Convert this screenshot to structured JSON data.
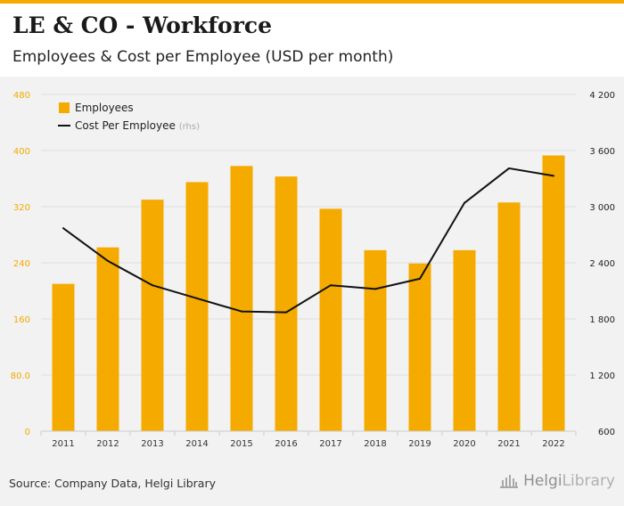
{
  "header": {
    "title": "LE & CO - Workforce",
    "subtitle": "Employees & Cost per Employee (USD per month)"
  },
  "footer": {
    "source": "Source: Company Data, Helgi Library",
    "brand_part1": "Helgi",
    "brand_part2": "Library"
  },
  "colors": {
    "bar": "#f5aa00",
    "line": "#111111",
    "left_axis": "#f5aa00",
    "right_axis": "#222222"
  },
  "chart_data": {
    "type": "bar",
    "categories": [
      "2011",
      "2012",
      "2013",
      "2014",
      "2015",
      "2016",
      "2017",
      "2018",
      "2019",
      "2020",
      "2021",
      "2022"
    ],
    "series": [
      {
        "name": "Employees",
        "type": "bar",
        "axis": "left",
        "values": [
          210,
          262,
          330,
          355,
          378,
          363,
          317,
          258,
          239,
          258,
          326,
          393
        ]
      },
      {
        "name": "Cost Per Employee",
        "suffix": "(rhs)",
        "type": "line",
        "axis": "right",
        "values": [
          2770,
          2420,
          2160,
          2020,
          1880,
          1870,
          2160,
          2120,
          2230,
          3040,
          3410,
          3330
        ]
      }
    ],
    "y_left": {
      "min": 0,
      "max": 480,
      "ticks": [
        "0",
        "80.0",
        "160",
        "240",
        "320",
        "400",
        "480"
      ]
    },
    "y_right": {
      "min": 600,
      "max": 4200,
      "ticks": [
        "600",
        "1 200",
        "1 800",
        "2 400",
        "3 000",
        "3 600",
        "4 200"
      ]
    },
    "legend": {
      "position": "top-left"
    },
    "grid": true
  }
}
